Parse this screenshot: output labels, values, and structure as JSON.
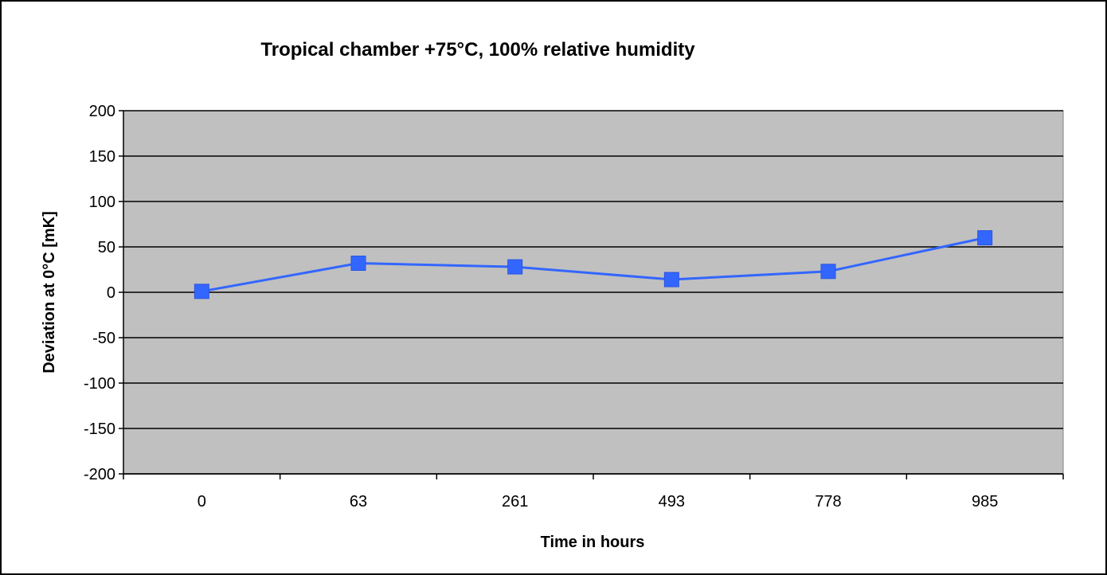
{
  "chart_data": {
    "type": "line",
    "title": "Tropical chamber +75°C, 100% relative humidity",
    "xlabel": "Time in hours",
    "ylabel": "Deviation at 0°C [mK]",
    "categories": [
      "0",
      "63",
      "261",
      "493",
      "778",
      "985"
    ],
    "series": [
      {
        "values": [
          1,
          32,
          28,
          14,
          23,
          60
        ],
        "color": "#3366ff",
        "marker": "square"
      }
    ],
    "ylim": [
      -200,
      200
    ],
    "yticks": [
      200,
      150,
      100,
      50,
      0,
      -50,
      -100,
      -150,
      -200
    ],
    "ytick_labels": [
      "200",
      "150",
      "100",
      "50",
      "0",
      "-50",
      "-100",
      "-150",
      "-200"
    ],
    "grid": "horizontal",
    "plot_background": "#c0c0c0",
    "gridline_color": "#000000",
    "legend": "none"
  }
}
